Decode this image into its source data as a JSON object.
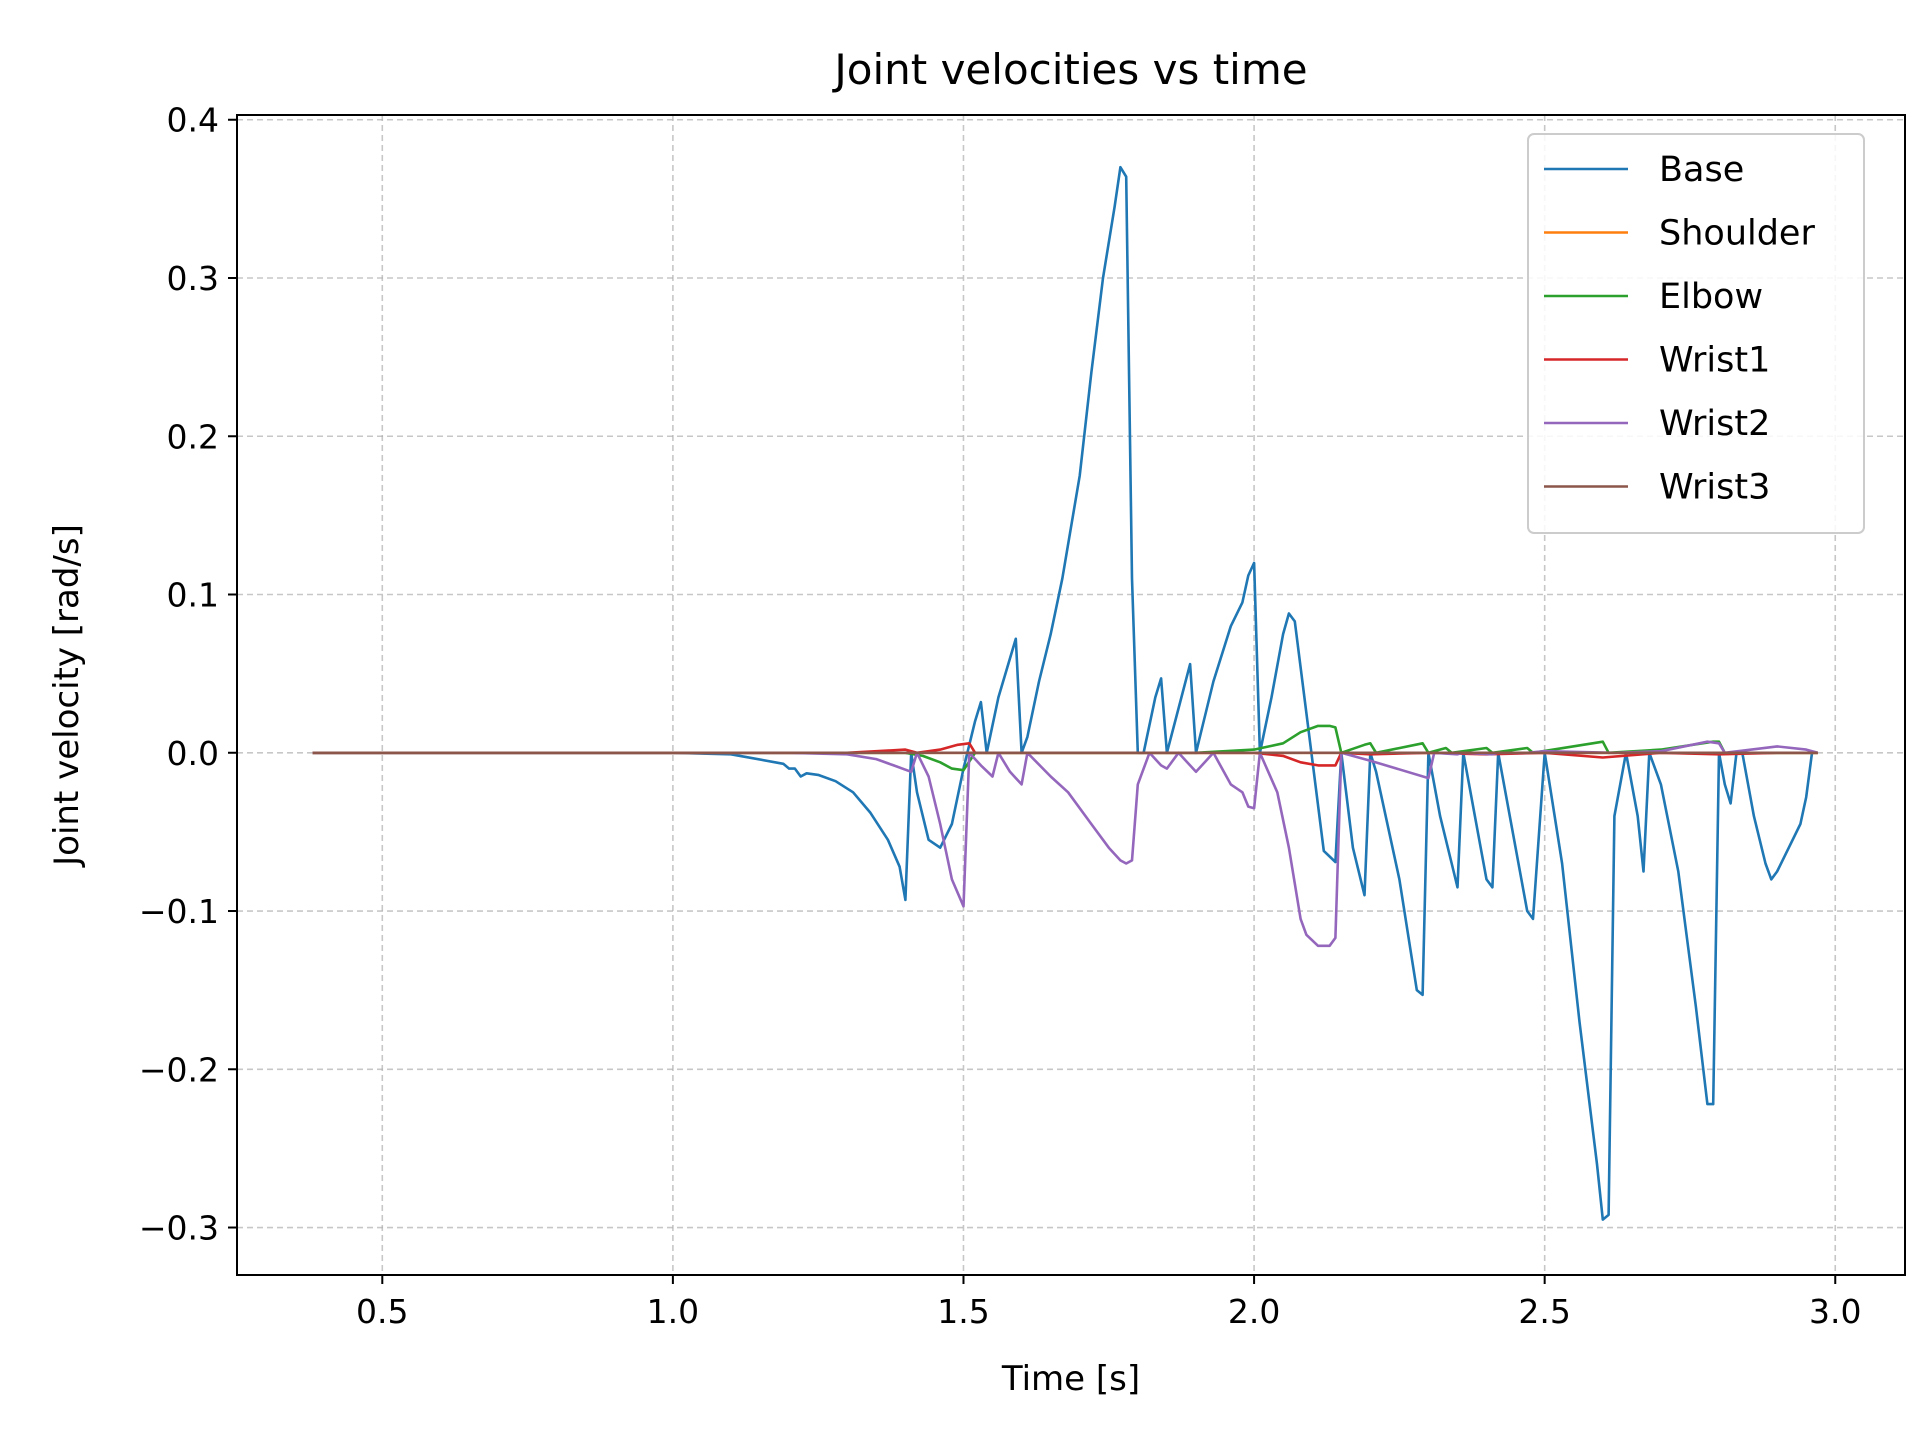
{
  "chart_data": {
    "type": "line",
    "title": "Joint velocities vs time",
    "xlabel": "Time [s]",
    "ylabel": "Joint velocity [rad/s]",
    "xlim": [
      0.25,
      3.12
    ],
    "ylim": [
      -0.33,
      0.403
    ],
    "xticks": [
      0.5,
      1.0,
      1.5,
      2.0,
      2.5,
      3.0
    ],
    "xtick_labels": [
      "0.5",
      "1.0",
      "1.5",
      "2.0",
      "2.5",
      "3.0"
    ],
    "yticks": [
      -0.3,
      -0.2,
      -0.1,
      0.0,
      0.1,
      0.2,
      0.3,
      0.4
    ],
    "ytick_labels": [
      "−0.3",
      "−0.2",
      "−0.1",
      "0.0",
      "0.1",
      "0.2",
      "0.3",
      "0.4"
    ],
    "grid": true,
    "legend_position": "top-right",
    "series": [
      {
        "name": "Base",
        "color": "#1f77b4",
        "x": [
          0.38,
          1.0,
          1.1,
          1.19,
          1.2,
          1.21,
          1.22,
          1.23,
          1.25,
          1.28,
          1.31,
          1.34,
          1.37,
          1.39,
          1.4,
          1.41,
          1.42,
          1.44,
          1.46,
          1.48,
          1.5,
          1.52,
          1.53,
          1.54,
          1.56,
          1.59,
          1.6,
          1.61,
          1.63,
          1.65,
          1.67,
          1.7,
          1.72,
          1.74,
          1.76,
          1.77,
          1.78,
          1.79,
          1.8,
          1.81,
          1.83,
          1.84,
          1.85,
          1.87,
          1.89,
          1.9,
          1.91,
          1.93,
          1.96,
          1.98,
          1.99,
          2.0,
          2.01,
          2.03,
          2.05,
          2.06,
          2.07,
          2.09,
          2.12,
          2.14,
          2.15,
          2.17,
          2.19,
          2.2,
          2.21,
          2.25,
          2.28,
          2.29,
          2.3,
          2.32,
          2.34,
          2.35,
          2.36,
          2.38,
          2.4,
          2.41,
          2.42,
          2.44,
          2.46,
          2.47,
          2.48,
          2.5,
          2.53,
          2.56,
          2.59,
          2.6,
          2.61,
          2.62,
          2.64,
          2.66,
          2.67,
          2.68,
          2.7,
          2.73,
          2.76,
          2.78,
          2.79,
          2.8,
          2.81,
          2.82,
          2.83,
          2.84,
          2.86,
          2.88,
          2.89,
          2.9,
          2.92,
          2.94,
          2.95,
          2.96
        ],
        "y": [
          0.0,
          0.0,
          -0.001,
          -0.007,
          -0.01,
          -0.01,
          -0.015,
          -0.013,
          -0.014,
          -0.018,
          -0.025,
          -0.038,
          -0.055,
          -0.072,
          -0.093,
          0.0,
          -0.025,
          -0.055,
          -0.06,
          -0.045,
          -0.01,
          0.02,
          0.032,
          0.0,
          0.035,
          0.072,
          0.0,
          0.01,
          0.045,
          0.075,
          0.11,
          0.175,
          0.24,
          0.3,
          0.345,
          0.37,
          0.364,
          0.11,
          0.0,
          0.0,
          0.035,
          0.047,
          0.0,
          0.028,
          0.056,
          0.0,
          0.015,
          0.045,
          0.08,
          0.095,
          0.112,
          0.12,
          0.0,
          0.035,
          0.075,
          0.088,
          0.083,
          0.025,
          -0.062,
          -0.069,
          0.0,
          -0.06,
          -0.09,
          0.0,
          -0.012,
          -0.08,
          -0.15,
          -0.153,
          0.0,
          -0.04,
          -0.07,
          -0.085,
          0.0,
          -0.04,
          -0.08,
          -0.085,
          0.0,
          -0.04,
          -0.08,
          -0.1,
          -0.105,
          0.0,
          -0.07,
          -0.17,
          -0.26,
          -0.295,
          -0.292,
          -0.04,
          0.0,
          -0.04,
          -0.075,
          0.0,
          -0.02,
          -0.075,
          -0.16,
          -0.222,
          -0.222,
          0.0,
          -0.02,
          -0.032,
          0.0,
          0.0,
          -0.04,
          -0.07,
          -0.08,
          -0.075,
          -0.06,
          -0.045,
          -0.028,
          0.0
        ]
      },
      {
        "name": "Shoulder",
        "color": "#ff7f0e",
        "x": [
          0.38,
          2.97
        ],
        "y": [
          0.0,
          0.0
        ]
      },
      {
        "name": "Elbow",
        "color": "#2ca02c",
        "x": [
          0.38,
          1.4,
          1.43,
          1.46,
          1.48,
          1.5,
          1.52,
          1.6,
          1.8,
          1.9,
          2.0,
          2.05,
          2.08,
          2.11,
          2.13,
          2.14,
          2.15,
          2.19,
          2.2,
          2.21,
          2.29,
          2.3,
          2.33,
          2.34,
          2.4,
          2.41,
          2.47,
          2.48,
          2.6,
          2.61,
          2.7,
          2.79,
          2.8,
          2.81,
          2.97
        ],
        "y": [
          0.0,
          0.0,
          -0.002,
          -0.006,
          -0.01,
          -0.011,
          0.0,
          0.0,
          0.0,
          0.0,
          0.002,
          0.006,
          0.013,
          0.017,
          0.017,
          0.016,
          0.0,
          0.005,
          0.006,
          0.0,
          0.006,
          0.0,
          0.003,
          0.0,
          0.003,
          0.0,
          0.003,
          0.0,
          0.007,
          0.0,
          0.002,
          0.007,
          0.007,
          0.0,
          0.0
        ]
      },
      {
        "name": "Wrist1",
        "color": "#d62728",
        "x": [
          0.38,
          1.3,
          1.4,
          1.42,
          1.46,
          1.49,
          1.51,
          1.52,
          1.8,
          2.0,
          2.05,
          2.08,
          2.11,
          2.14,
          2.15,
          2.2,
          2.3,
          2.4,
          2.5,
          2.6,
          2.7,
          2.8,
          2.9,
          2.97
        ],
        "y": [
          0.0,
          0.0,
          0.002,
          0.0,
          0.002,
          0.005,
          0.006,
          0.0,
          0.0,
          0.0,
          -0.002,
          -0.006,
          -0.008,
          -0.008,
          0.0,
          -0.001,
          0.0,
          -0.001,
          0.0,
          -0.003,
          0.0,
          -0.001,
          0.0,
          0.0
        ]
      },
      {
        "name": "Wrist2",
        "color": "#9467bd",
        "x": [
          0.38,
          1.2,
          1.3,
          1.35,
          1.38,
          1.41,
          1.42,
          1.44,
          1.46,
          1.48,
          1.5,
          1.51,
          1.53,
          1.55,
          1.56,
          1.58,
          1.6,
          1.61,
          1.65,
          1.68,
          1.72,
          1.75,
          1.77,
          1.78,
          1.79,
          1.8,
          1.82,
          1.84,
          1.85,
          1.87,
          1.89,
          1.9,
          1.93,
          1.96,
          1.98,
          1.99,
          2.0,
          2.01,
          2.04,
          2.06,
          2.08,
          2.09,
          2.11,
          2.13,
          2.14,
          2.15,
          2.2,
          2.3,
          2.31,
          2.35,
          2.36,
          2.41,
          2.42,
          2.47,
          2.5,
          2.62,
          2.7,
          2.78,
          2.8,
          2.81,
          2.9,
          2.95,
          2.97
        ],
        "y": [
          0.0,
          0.0,
          -0.001,
          -0.004,
          -0.008,
          -0.012,
          0.0,
          -0.015,
          -0.045,
          -0.08,
          -0.097,
          0.0,
          -0.008,
          -0.015,
          0.0,
          -0.012,
          -0.02,
          0.0,
          -0.015,
          -0.025,
          -0.045,
          -0.06,
          -0.068,
          -0.07,
          -0.068,
          -0.02,
          0.0,
          -0.008,
          -0.01,
          0.0,
          -0.008,
          -0.012,
          0.0,
          -0.02,
          -0.025,
          -0.034,
          -0.035,
          0.0,
          -0.025,
          -0.06,
          -0.105,
          -0.115,
          -0.122,
          -0.122,
          -0.117,
          0.0,
          -0.005,
          -0.016,
          0.0,
          -0.001,
          0.0,
          -0.001,
          0.0,
          0.0,
          0.001,
          0.0,
          0.001,
          0.007,
          0.006,
          0.0,
          0.004,
          0.002,
          0.0
        ]
      },
      {
        "name": "Wrist3",
        "color": "#8c564b",
        "x": [
          0.38,
          2.97
        ],
        "y": [
          0.0,
          0.0
        ]
      }
    ]
  }
}
